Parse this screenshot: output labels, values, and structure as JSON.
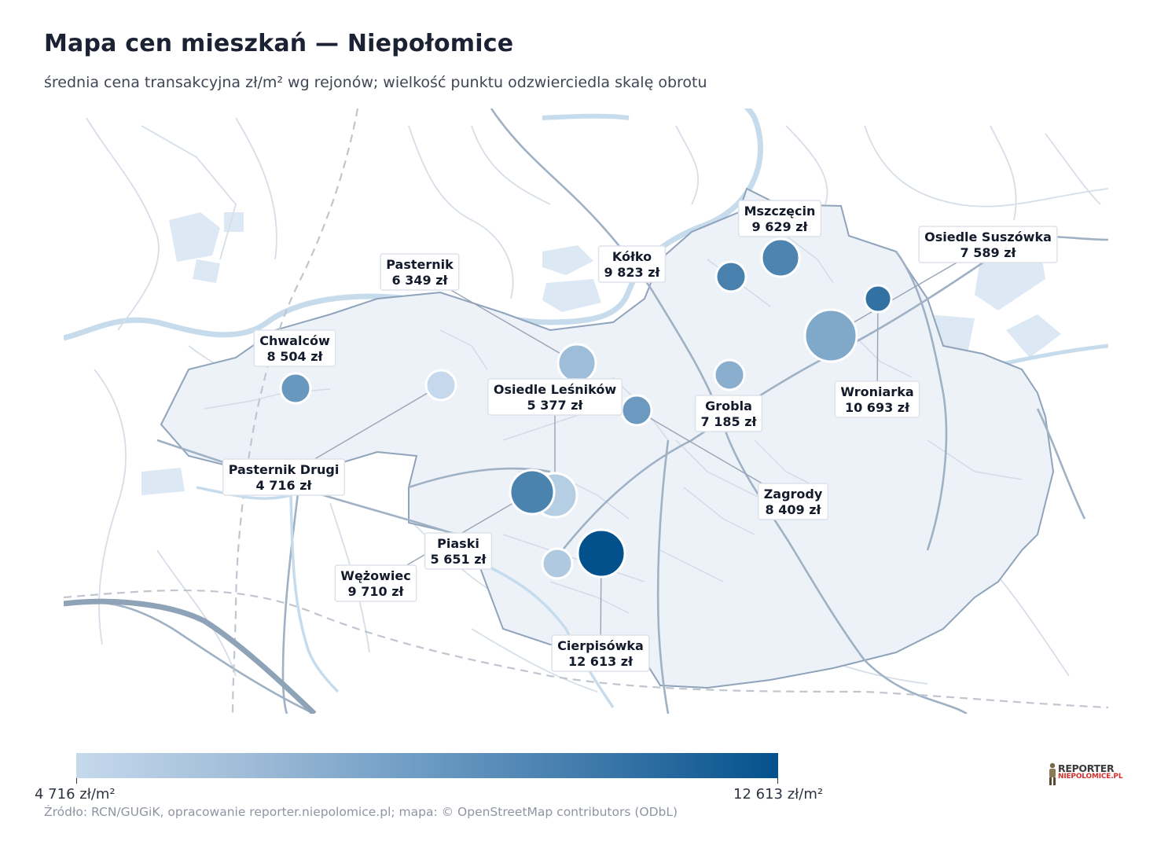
{
  "title": "Mapa cen mieszkań — Niepołomice",
  "subtitle": "średnia cena transakcyjna zł/m² wg rejonów; wielkość punktu odzwierciedla skalę obrotu",
  "source": "Źródło: RCN/GUGiK, opracowanie reporter.niepolomice.pl; mapa: © OpenStreetMap contributors (ODbL)",
  "logo": {
    "line1": "REPORTER",
    "line2": "NIEPOLOMICE.PL"
  },
  "colorbar": {
    "min_label": "4 716 zł/m²",
    "max_label": "12 613 zł/m²",
    "min_value": 4716,
    "max_value": 12613,
    "color_low": "#c6d9ec",
    "color_high": "#03518c"
  },
  "districts": [
    {
      "name": "Mszczęcin",
      "price": "9 629 zł",
      "value": 9629,
      "size": "medium"
    },
    {
      "name": "Kółko",
      "price": "9 823 zł",
      "value": 9823,
      "size": "small"
    },
    {
      "name": "Osiedle Suszówka",
      "price": "7 589 zł",
      "value": 7589,
      "size": "xlarge"
    },
    {
      "name": "Pasternik",
      "price": "6 349 zł",
      "value": 6349,
      "size": "medium"
    },
    {
      "name": "Chwalców",
      "price": "8 504 zł",
      "value": 8504,
      "size": "small"
    },
    {
      "name": "Wroniarka",
      "price": "10 693 zł",
      "value": 10693,
      "size": "tiny"
    },
    {
      "name": "Grobla",
      "price": "7 185 zł",
      "value": 7185,
      "size": "small"
    },
    {
      "name": "Osiedle Leśników",
      "price": "5 377 zł",
      "value": 5377,
      "size": "large"
    },
    {
      "name": "Pasternik Drugi",
      "price": "4 716 zł",
      "value": 4716,
      "size": "small"
    },
    {
      "name": "Zagrody",
      "price": "8 409 zł",
      "value": 8409,
      "size": "small"
    },
    {
      "name": "Piaski",
      "price": "5 651 zł",
      "value": 5651,
      "size": "small"
    },
    {
      "name": "Wężowiec",
      "price": "9 710 zł",
      "value": 9710,
      "size": "large"
    },
    {
      "name": "Cierpisówka",
      "price": "12 613 zł",
      "value": 12613,
      "size": "xlarge"
    }
  ]
}
